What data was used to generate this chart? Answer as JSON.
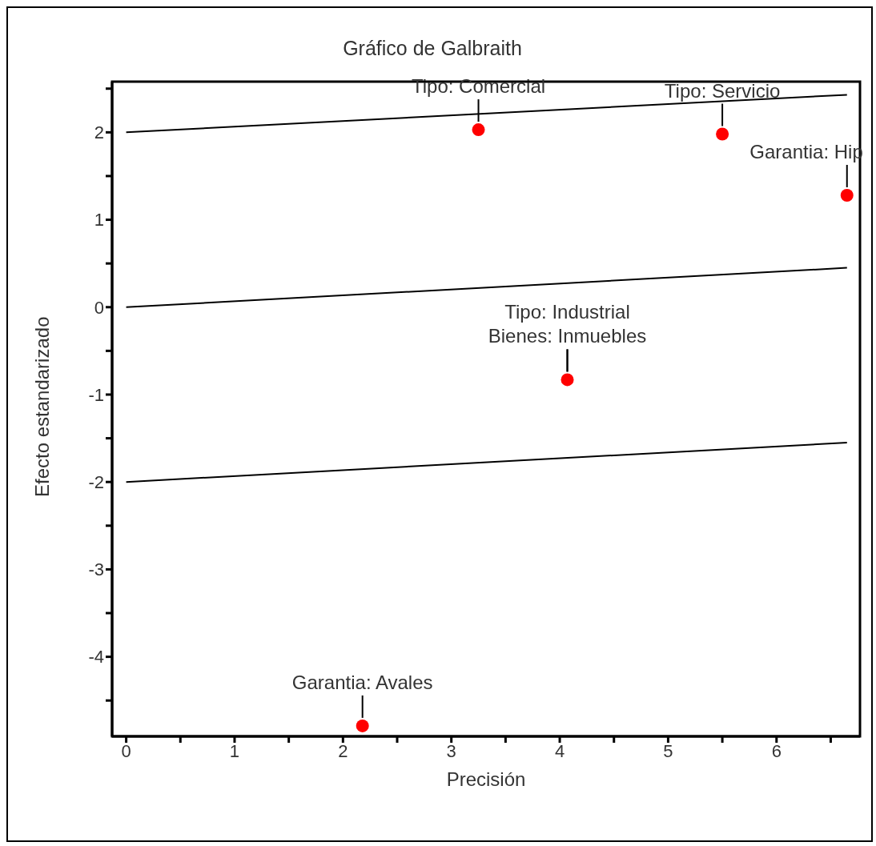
{
  "chart_data": {
    "type": "scatter",
    "title": "Gráfico de Galbraith",
    "xlabel": "Precisión",
    "ylabel": "Efecto estandarizado",
    "xlim": [
      -0.13,
      6.77
    ],
    "ylim": [
      -4.91,
      2.58
    ],
    "xticks": [
      0,
      {
        "value": 0.5,
        "label": null
      },
      1,
      {
        "value": 1.5,
        "label": null
      },
      2,
      {
        "value": 2.5,
        "label": null
      },
      3,
      {
        "value": 3.5,
        "label": null
      },
      4,
      {
        "value": 4.5,
        "label": null
      },
      5,
      {
        "value": 5.5,
        "label": null
      },
      6,
      {
        "value": 6.5,
        "label": null
      }
    ],
    "yticks": [
      {
        "value": -4.5,
        "label": null
      },
      -4,
      {
        "value": -3.5,
        "label": null
      },
      -3,
      {
        "value": -2.5,
        "label": null
      },
      -2,
      {
        "value": -1.5,
        "label": null
      },
      -1,
      {
        "value": -0.5,
        "label": null
      },
      0,
      {
        "value": 0.5,
        "label": null
      },
      1,
      {
        "value": 1.5,
        "label": null
      },
      2,
      {
        "value": 2.5,
        "label": null
      }
    ],
    "grid": false,
    "legend": false,
    "series": [
      {
        "type": "line",
        "color": "#000000",
        "x": [
          0,
          6.65
        ],
        "values": [
          2,
          2.43
        ],
        "line_style": "solid"
      },
      {
        "type": "line",
        "color": "#000000",
        "x": [
          0,
          6.65
        ],
        "values": [
          0,
          0.45
        ],
        "line_style": "solid"
      },
      {
        "type": "line",
        "color": "#000000",
        "x": [
          0,
          6.65
        ],
        "values": [
          -2,
          -1.55
        ],
        "line_style": "solid"
      },
      {
        "type": "scatter",
        "color": "#ff0000",
        "marker": "circle",
        "x": [
          3.25,
          5.5,
          6.65,
          4.07,
          2.18
        ],
        "values": [
          2.03,
          1.98,
          1.28,
          -0.83,
          -4.79
        ]
      }
    ],
    "annotations": [
      {
        "text": "Tipo: Comercial",
        "x": 3.25,
        "y": 2.03
      },
      {
        "text": "Tipo: Servicio",
        "x": 5.5,
        "y": 1.98
      },
      {
        "text": "Garantia: Hip",
        "x": 6.65,
        "y": 1.28
      },
      {
        "text": "Bienes: Inmuebles",
        "x": 4.07,
        "y": -0.83
      },
      {
        "text": "Tipo: Industrial",
        "x": 4.07,
        "y": -0.83
      },
      {
        "text": "Garantia: Avales",
        "x": 2.18,
        "y": -4.79
      }
    ]
  }
}
